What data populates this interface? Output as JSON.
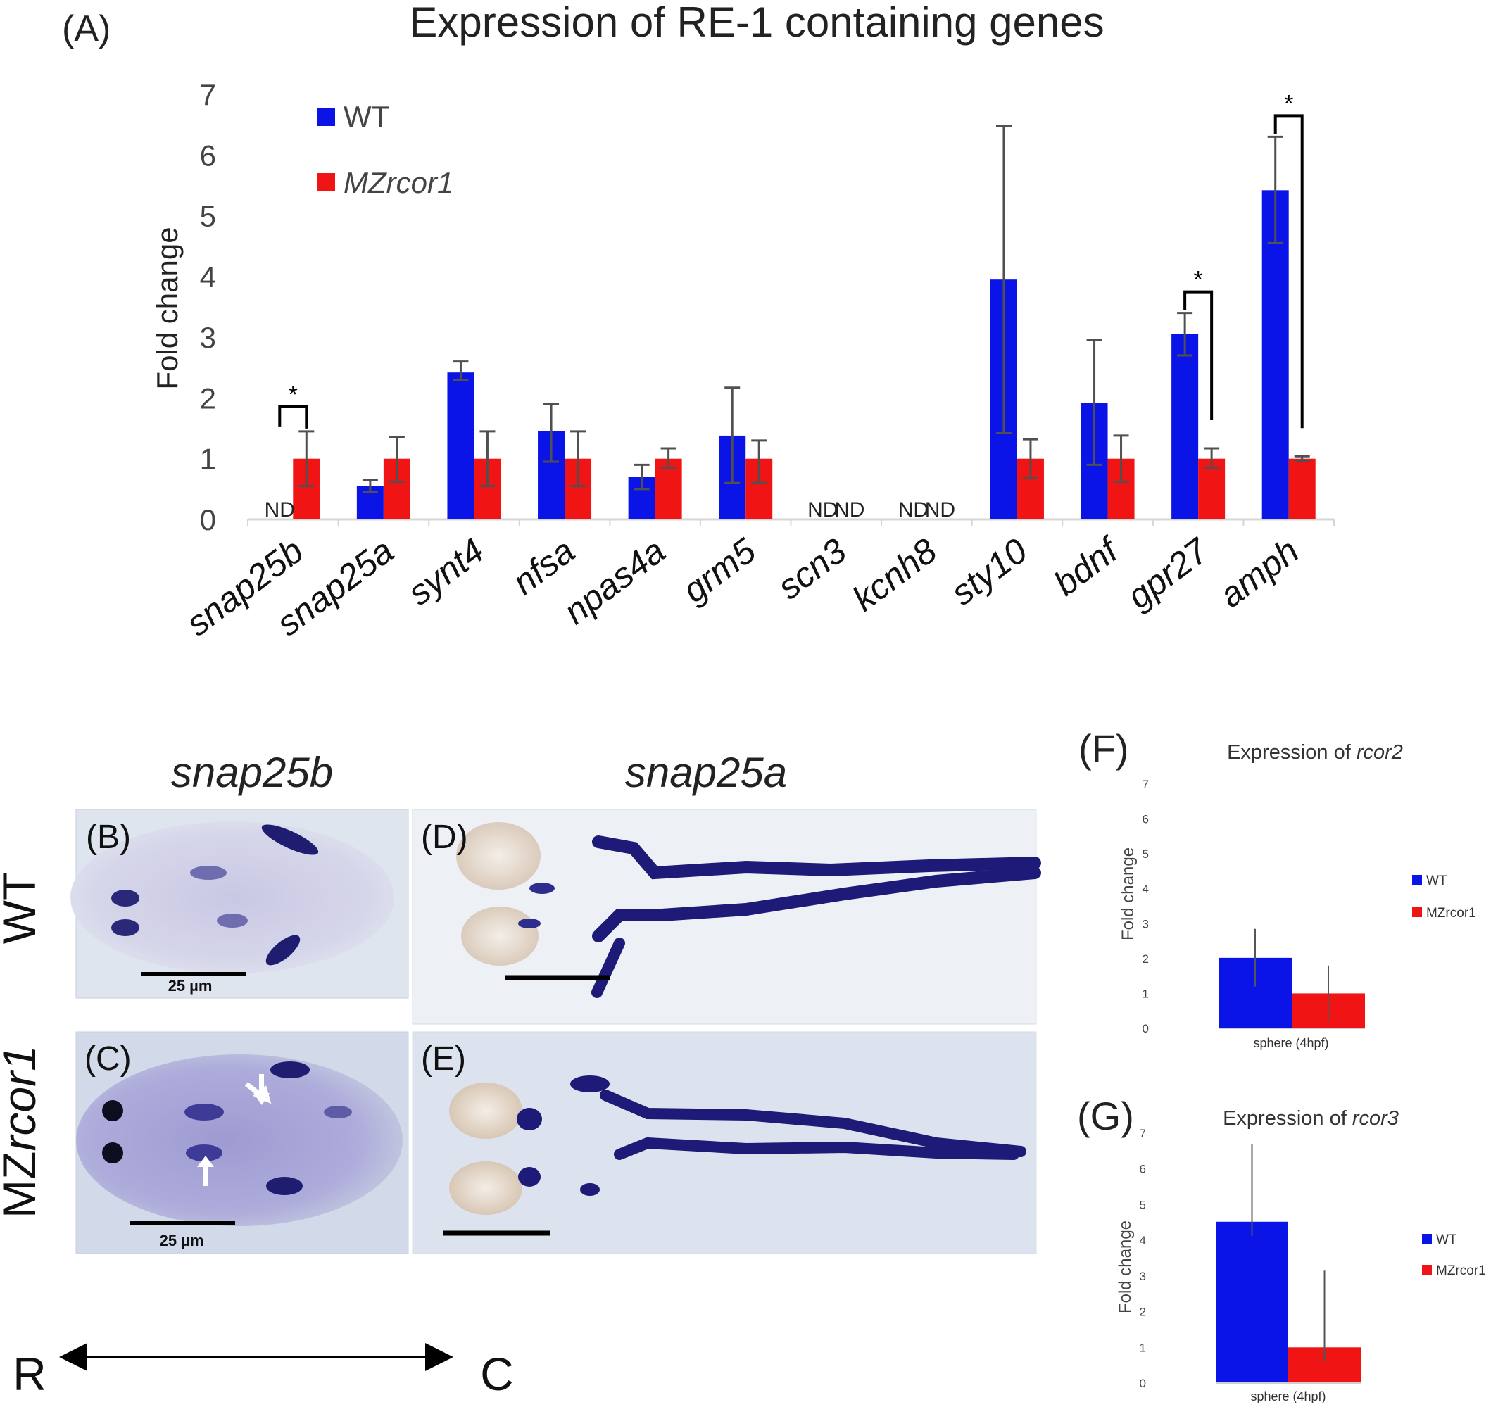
{
  "panel_A": {
    "label": "(A)",
    "chart_data": {
      "type": "bar",
      "title": "Expression of RE-1 containing genes",
      "ylabel": "Fold change",
      "xlabel": "",
      "ylim": [
        0,
        7
      ],
      "yticks": [
        "0",
        "1",
        "2",
        "3",
        "4",
        "5",
        "6",
        "7"
      ],
      "categories": [
        "snap25b",
        "snap25a",
        "synt4",
        "nfsa",
        "npas4a",
        "grm5",
        "scn3",
        "kcnh8",
        "sty10",
        "bdnf",
        "gpr27",
        "amph"
      ],
      "series": [
        {
          "name": "WT",
          "color": "#0a14e6",
          "values": [
            null,
            0.55,
            2.42,
            1.45,
            0.7,
            1.38,
            null,
            null,
            3.95,
            1.92,
            3.05,
            5.42
          ],
          "err_low": [
            null,
            0.45,
            2.3,
            0.95,
            0.5,
            0.6,
            null,
            null,
            1.42,
            0.9,
            2.7,
            4.55
          ],
          "err_high": [
            null,
            0.65,
            2.6,
            1.9,
            0.9,
            2.17,
            null,
            null,
            6.48,
            2.95,
            3.4,
            6.3
          ]
        },
        {
          "name": "MZrcor1",
          "color": "#f01414",
          "values": [
            1,
            1,
            1,
            1,
            1,
            1,
            null,
            null,
            1,
            1,
            1,
            1
          ],
          "err_low": [
            0.55,
            0.62,
            0.55,
            0.55,
            0.84,
            0.6,
            null,
            null,
            0.68,
            0.62,
            0.84,
            0.96
          ],
          "err_high": [
            1.45,
            1.35,
            1.45,
            1.45,
            1.17,
            1.3,
            null,
            null,
            1.32,
            1.38,
            1.17,
            1.04
          ]
        }
      ],
      "nd_labels": [
        {
          "category": "snap25b",
          "series": "WT",
          "text": "ND"
        },
        {
          "category": "scn3",
          "series": "WT",
          "text": "ND"
        },
        {
          "category": "scn3",
          "series": "MZrcor1",
          "text": "ND"
        },
        {
          "category": "kcnh8",
          "series": "WT",
          "text": "ND"
        },
        {
          "category": "kcnh8",
          "series": "MZrcor1",
          "text": "ND"
        }
      ],
      "significance": [
        {
          "category": "snap25b",
          "text": "*"
        },
        {
          "category": "gpr27",
          "text": "*"
        },
        {
          "category": "amph",
          "text": "*"
        }
      ],
      "legend_position": "top-left"
    }
  },
  "panel_F": {
    "label": "(F)",
    "chart_data": {
      "type": "bar",
      "title": "Expression of ",
      "title_gene": "rcor2",
      "ylabel": "Fold change",
      "ylim": [
        0,
        7
      ],
      "yticks": [
        "0",
        "1",
        "2",
        "3",
        "4",
        "5",
        "6",
        "7"
      ],
      "categories": [
        "sphere (4hpf)"
      ],
      "series": [
        {
          "name": "WT",
          "color": "#0a14e6",
          "values": [
            2.02
          ],
          "err_low": [
            1.2
          ],
          "err_high": [
            2.85
          ]
        },
        {
          "name": "MZrcor1",
          "color": "#f01414",
          "values": [
            1.0
          ],
          "err_low": [
            0.2
          ],
          "err_high": [
            1.8
          ]
        }
      ],
      "legend_position": "right"
    }
  },
  "panel_G": {
    "label": "(G)",
    "chart_data": {
      "type": "bar",
      "title": "Expression of ",
      "title_gene": "rcor3",
      "ylabel": "Fold change",
      "ylim": [
        0,
        7
      ],
      "yticks": [
        "0",
        "1",
        "2",
        "3",
        "4",
        "5",
        "6",
        "7"
      ],
      "categories": [
        "sphere (4hpf)"
      ],
      "series": [
        {
          "name": "WT",
          "color": "#0a14e6",
          "values": [
            4.52
          ],
          "err_low": [
            4.12
          ],
          "err_high": [
            6.7
          ]
        },
        {
          "name": "MZrcor1",
          "color": "#f01414",
          "values": [
            1.0
          ],
          "err_low": [
            0.6
          ],
          "err_high": [
            3.15
          ]
        }
      ],
      "legend_position": "right"
    }
  },
  "images": {
    "col_titles": [
      "snap25b",
      "snap25a"
    ],
    "row_labels": [
      "WT",
      "MZ",
      "rcor1"
    ],
    "panel_labels": [
      "(B)",
      "(C)",
      "(D)",
      "(E)"
    ],
    "scale_bar_text": "25 µm",
    "axis_rostral": "R",
    "axis_caudal": "C"
  }
}
